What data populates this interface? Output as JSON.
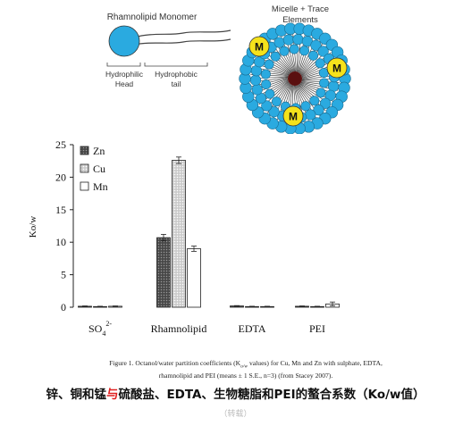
{
  "diagram": {
    "monomer_title": "Rhamnolipid Monomer",
    "hydrophilic_label": "Hydrophilic Head",
    "hydrophobic_label": "Hydrophobic tail",
    "micelle_title": "Micelle + Trace Elements",
    "metal_symbol": "M",
    "head_color": "#2aaae0",
    "metal_color": "#f5e21b"
  },
  "chart_data": {
    "type": "bar",
    "categories": [
      "SO4 2-",
      "Rhamnolipid",
      "EDTA",
      "PEI"
    ],
    "category_main": [
      "SO",
      "Rhamnolipid",
      "EDTA",
      "PEI"
    ],
    "category_sub": [
      "4",
      "",
      "",
      ""
    ],
    "category_sup": [
      "2-",
      "",
      "",
      ""
    ],
    "series": [
      {
        "name": "Zn",
        "values": [
          0.15,
          10.7,
          0.2,
          0.15
        ],
        "errors": [
          0.05,
          0.5,
          0.05,
          0.05
        ],
        "fill": "#666666",
        "pattern": "dots"
      },
      {
        "name": "Cu",
        "values": [
          0.1,
          22.6,
          0.1,
          0.1
        ],
        "errors": [
          0.05,
          0.5,
          0.05,
          0.05
        ],
        "fill": "#d0d0d0",
        "pattern": "dots-light"
      },
      {
        "name": "Mn",
        "values": [
          0.15,
          9.0,
          0.1,
          0.5
        ],
        "errors": [
          0.05,
          0.4,
          0.05,
          0.3
        ],
        "fill": "#ffffff",
        "pattern": "none"
      }
    ],
    "ylabel": "Ko/w",
    "xlabel": "",
    "ylim": [
      0,
      25
    ],
    "yticks": [
      0,
      5,
      10,
      15,
      20,
      25
    ],
    "legend_position": "top-left",
    "grid": false
  },
  "caption": "Figure 1. Octanol/water partition coefficients (Ko/w values) for Cu, Mn and Zn with sulphate, EDTA, rhamnolipid and PEI (means ± 1 S.E., n=3) (from Stacey 2007).",
  "caption_line1": "Figure 1. Octanol/water partition coefficients (K",
  "caption_kow_sub": "o/w",
  "caption_line1b": " values) for Cu, Mn and Zn with sulphate, EDTA,",
  "caption_line2": "rhamnolipid and PEI (means ± 1 S.E., n=3) (from Stacey 2007).",
  "cn_title_a": "锌、铜和锰",
  "cn_title_red": "与",
  "cn_title_b": "硫酸盐、EDTA、生物糖脂和PEI的螯合系数（Ko/w值）",
  "cn_note": "（转载）"
}
